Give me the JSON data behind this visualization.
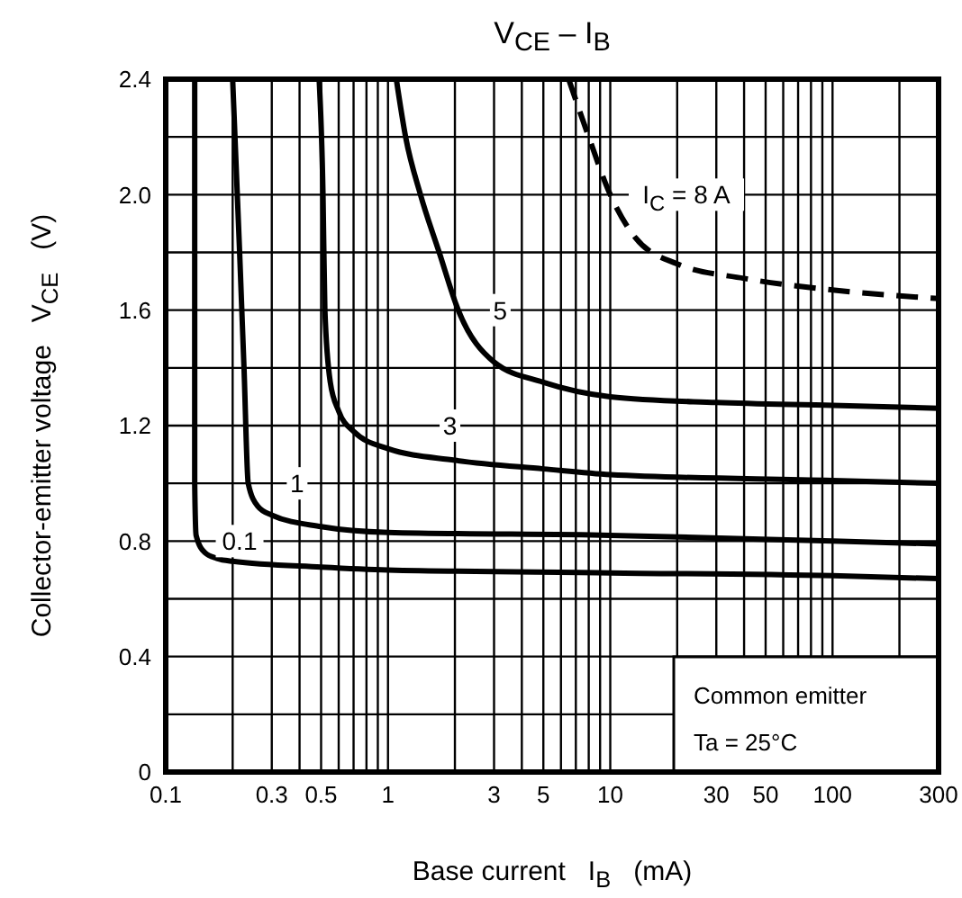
{
  "chart_data": {
    "type": "line",
    "title": "V$_{CE}$ – I$_{B}$",
    "xlabel": "Base current   I$_{B}$   (mA)",
    "ylabel": "Collector-emitter voltage   V$_{CE}$   (V)",
    "annotations": [
      "Common emitter",
      "Ta = 25°C"
    ],
    "log": "x",
    "grid": true,
    "marker": "none",
    "line_style": "solid",
    "xlim": [
      0.1,
      300
    ],
    "ylim": [
      0,
      2.4
    ],
    "xticks": [
      0.1,
      {
        "value": 0.2,
        "label": null
      },
      0.3,
      {
        "value": 0.4,
        "label": null
      },
      0.5,
      {
        "value": 0.6,
        "label": null
      },
      {
        "value": 0.7,
        "label": null
      },
      {
        "value": 0.8,
        "label": null
      },
      {
        "value": 0.9,
        "label": null
      },
      1,
      {
        "value": 2,
        "label": null
      },
      3,
      {
        "value": 4,
        "label": null
      },
      5,
      {
        "value": 6,
        "label": null
      },
      {
        "value": 7,
        "label": null
      },
      {
        "value": 8,
        "label": null
      },
      {
        "value": 9,
        "label": null
      },
      10,
      {
        "value": 20,
        "label": null
      },
      30,
      {
        "value": 40,
        "label": null
      },
      50,
      {
        "value": 60,
        "label": null
      },
      {
        "value": 70,
        "label": null
      },
      {
        "value": 80,
        "label": null
      },
      {
        "value": 90,
        "label": null
      },
      100,
      {
        "value": 200,
        "label": null
      },
      300
    ],
    "yticks": [
      0,
      {
        "value": 0.2,
        "label": null
      },
      0.4,
      {
        "value": 0.6,
        "label": null
      },
      0.8,
      {
        "value": 1.0,
        "label": null
      },
      1.2,
      {
        "value": 1.4,
        "label": null
      },
      1.6,
      {
        "value": 1.8,
        "label": null
      },
      {
        "value": 2.0,
        "label": "2.0"
      },
      {
        "value": 2.2,
        "label": null
      },
      2.4
    ],
    "series": [
      {
        "name": "0.1",
        "color": "#000000",
        "x": [
          0.135,
          0.135,
          0.137,
          0.15,
          0.17,
          0.2,
          0.5,
          1,
          10,
          100,
          300
        ],
        "values": [
          2.4,
          1.0,
          0.82,
          0.76,
          0.74,
          0.73,
          0.71,
          0.7,
          0.69,
          0.68,
          0.67
        ]
      },
      {
        "name": "1",
        "color": "#000000",
        "x": [
          0.2,
          0.215,
          0.225,
          0.235,
          0.26,
          0.3,
          0.5,
          1,
          10,
          100,
          300
        ],
        "values": [
          2.4,
          1.8,
          1.4,
          1.0,
          0.92,
          0.89,
          0.85,
          0.83,
          0.82,
          0.8,
          0.79
        ]
      },
      {
        "name": "3",
        "color": "#000000",
        "x": [
          0.49,
          0.51,
          0.52,
          0.55,
          0.6,
          0.7,
          1,
          2,
          5,
          10,
          100,
          300
        ],
        "values": [
          2.4,
          2.0,
          1.6,
          1.35,
          1.25,
          1.18,
          1.12,
          1.08,
          1.05,
          1.03,
          1.01,
          1.0
        ]
      },
      {
        "name": "5",
        "color": "#000000",
        "x": [
          1.09,
          1.2,
          1.4,
          1.7,
          2.07,
          3,
          5,
          10,
          30,
          100,
          300
        ],
        "values": [
          2.4,
          2.2,
          2.0,
          1.8,
          1.6,
          1.42,
          1.35,
          1.3,
          1.28,
          1.27,
          1.26
        ]
      },
      {
        "name": "I$_{C}$ = 8 A",
        "color": "#000000",
        "line_style": "dashed",
        "x": [
          6.5,
          8,
          10,
          13,
          20,
          40,
          100,
          300
        ],
        "values": [
          2.4,
          2.2,
          2.0,
          1.85,
          1.76,
          1.71,
          1.67,
          1.64
        ]
      }
    ]
  }
}
